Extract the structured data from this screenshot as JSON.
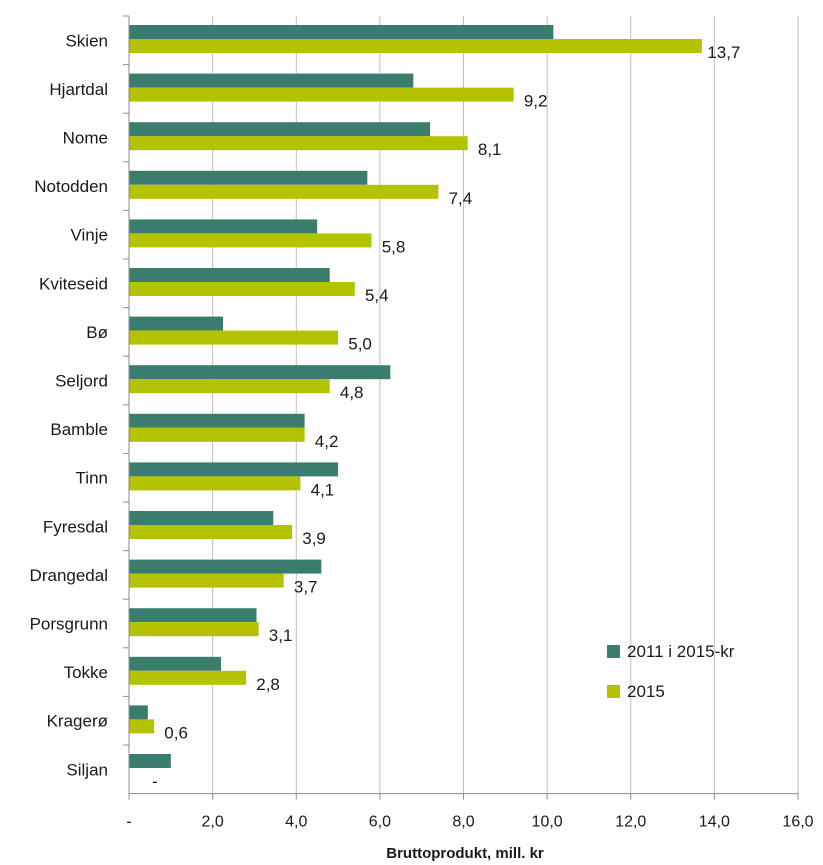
{
  "chart_data": {
    "type": "bar",
    "orientation": "horizontal",
    "xlabel": "Bruttoprodukt, mill. kr",
    "ylabel": "",
    "xlim": [
      0,
      16
    ],
    "x_ticks": [
      0,
      2,
      4,
      6,
      8,
      10,
      12,
      14,
      16
    ],
    "x_tick_labels": [
      "-",
      "2,0",
      "4,0",
      "6,0",
      "8,0",
      "10,0",
      "12,0",
      "14,0",
      "16,0"
    ],
    "grid": "vertical major gridlines",
    "legend_position": "bottom-right",
    "categories": [
      "Skien",
      "Hjartdal",
      "Nome",
      "Notodden",
      "Vinje",
      "Kviteseid",
      "Bø",
      "Seljord",
      "Bamble",
      "Tinn",
      "Fyresdal",
      "Drangedal",
      "Porsgrunn",
      "Tokke",
      "Kragerø",
      "Siljan"
    ],
    "series": [
      {
        "name": "2011 i 2015-kr",
        "color": "#3a7d6e",
        "values": [
          10.15,
          6.8,
          7.2,
          5.7,
          4.5,
          4.8,
          2.25,
          6.25,
          4.2,
          5.0,
          3.45,
          4.6,
          3.05,
          2.2,
          0.45,
          1.0
        ]
      },
      {
        "name": "2015",
        "color": "#b5c200",
        "values": [
          13.7,
          9.2,
          8.1,
          7.4,
          5.8,
          5.4,
          5.0,
          4.8,
          4.2,
          4.1,
          3.9,
          3.7,
          3.1,
          2.8,
          0.6,
          0.0
        ],
        "data_labels": [
          "13,7",
          "9,2",
          "8,1",
          "7,4",
          "5,8",
          "5,4",
          "5,0",
          "4,8",
          "4,2",
          "4,1",
          "3,9",
          "3,7",
          "3,1",
          "2,8",
          "0,6",
          "-"
        ]
      }
    ]
  }
}
